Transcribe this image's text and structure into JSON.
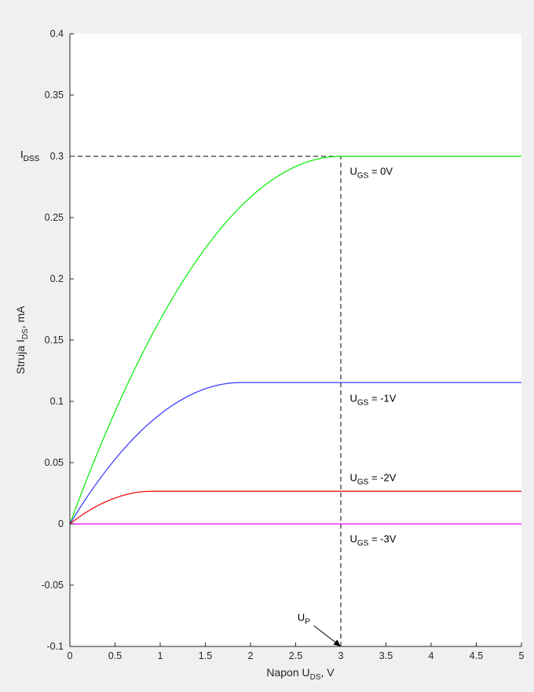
{
  "chart_data": {
    "type": "line",
    "xlabel": {
      "main": "Napon U",
      "sub": "DS",
      "tail": ", V"
    },
    "ylabel": {
      "main": "Struja I",
      "sub": "DS",
      "tail": ", mA"
    },
    "xlim": [
      0,
      5
    ],
    "ylim": [
      -0.1,
      0.4
    ],
    "x_ticks": [
      0,
      0.5,
      1,
      1.5,
      2,
      2.5,
      3,
      3.5,
      4,
      4.5,
      5
    ],
    "x_tick_labels": [
      "0",
      "0.5",
      "1",
      "1.5",
      "2",
      "2.5",
      "3",
      "3.5",
      "4",
      "4.5",
      "5"
    ],
    "y_ticks": [
      -0.1,
      -0.05,
      0,
      0.05,
      0.1,
      0.15,
      0.2,
      0.25,
      0.3,
      0.35,
      0.4
    ],
    "y_tick_labels": [
      "-0.1",
      "-0.05",
      "0",
      "0.05",
      "0.1",
      "0.15",
      "0.2",
      "0.25",
      "0.3",
      "0.35",
      "0.4"
    ],
    "grid": false,
    "series": [
      {
        "id": "ugs0",
        "color": "#00ee00",
        "formula": "saturating-parabola",
        "I_sat": 0.3,
        "U_sat": 3
      },
      {
        "id": "ugs-1",
        "color": "#3333ff",
        "formula": "saturating-parabola",
        "I_sat": 0.1154,
        "U_sat": 1.9
      },
      {
        "id": "ugs-2",
        "color": "#ee0000",
        "formula": "saturating-parabola",
        "I_sat": 0.0267,
        "U_sat": 0.92
      },
      {
        "id": "ugs-3",
        "color": "#ee00ee",
        "formula": "saturating-parabola",
        "I_sat": 0,
        "U_sat": 0
      }
    ],
    "reference_lines": {
      "horizontal": {
        "y": 0.3,
        "x_from": 0,
        "x_to": 3
      },
      "vertical": {
        "x": 3,
        "y_from": -0.1,
        "y_to": 0.3
      }
    },
    "annotations": [
      {
        "id": "idss",
        "main": "I",
        "sub": "DSS",
        "tail": "",
        "x": 0,
        "y": 0.3
      },
      {
        "id": "ugs0",
        "main": "U",
        "sub": "GS",
        "tail": " = 0V",
        "x": 3.1,
        "y": 0.288
      },
      {
        "id": "ugs-1",
        "main": "U",
        "sub": "GS",
        "tail": " = -1V",
        "x": 3.1,
        "y": 0.103
      },
      {
        "id": "ugs-2",
        "main": "U",
        "sub": "GS",
        "tail": " = -2V",
        "x": 3.1,
        "y": 0.038
      },
      {
        "id": "ugs-3",
        "main": "U",
        "sub": "GS",
        "tail": " = -3V",
        "x": 3.1,
        "y": -0.012
      },
      {
        "id": "up",
        "main": "U",
        "sub": "P",
        "tail": "",
        "x": 2.52,
        "y": -0.076
      }
    ],
    "arrow": {
      "from": [
        2.7,
        -0.083
      ],
      "to": [
        3,
        -0.1
      ]
    },
    "colors": {
      "axes_bg": "#ffffff",
      "figure_bg": "#f0f0f0",
      "axis": "#262626",
      "ref_line": "#000000"
    }
  }
}
